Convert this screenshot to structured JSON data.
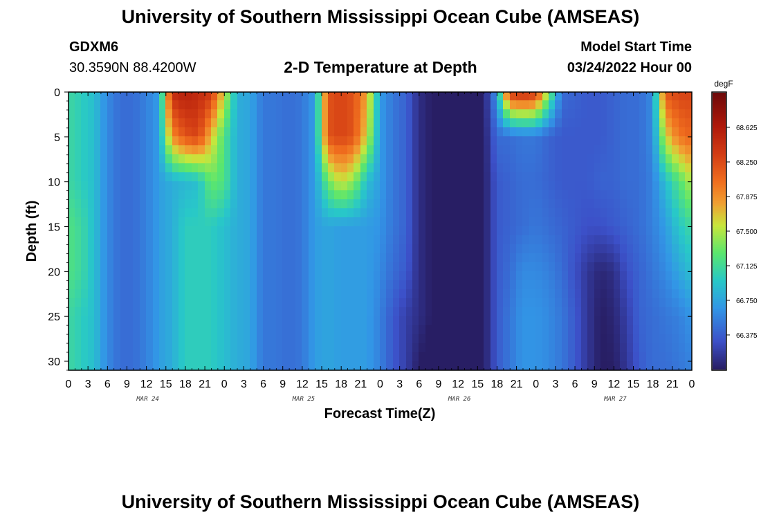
{
  "header": {
    "title": "University of Southern Mississippi Ocean Cube (AMSEAS)",
    "station_id": "GDXM6",
    "station_coords": "30.3590N  88.4200W",
    "plot_title": "2-D Temperature at Depth",
    "model_start_label": "Model Start Time",
    "model_start_value": "03/24/2022 Hour 00"
  },
  "footer": {
    "title": "University of Southern Mississippi Ocean Cube (AMSEAS)"
  },
  "chart_data": {
    "type": "heatmap",
    "title": "2-D Temperature at Depth",
    "xlabel": "Forecast Time(Z)",
    "ylabel": "Depth (ft)",
    "x_range_hours": [
      0,
      96
    ],
    "y_range_ft": [
      0,
      31
    ],
    "x_tick_labels": [
      "0",
      "3",
      "6",
      "9",
      "12",
      "15",
      "18",
      "21",
      "0",
      "3",
      "6",
      "9",
      "12",
      "15",
      "18",
      "21",
      "0",
      "3",
      "6",
      "9",
      "12",
      "15",
      "18",
      "21",
      "0",
      "3",
      "6",
      "9",
      "12",
      "15",
      "18",
      "21",
      "0"
    ],
    "y_ticks": [
      0,
      5,
      10,
      15,
      20,
      25,
      30
    ],
    "y_tick_labels": [
      "0",
      "5",
      "10",
      "15",
      "20",
      "25",
      "30"
    ],
    "day_labels": [
      {
        "label": "MAR 24",
        "hour": 12
      },
      {
        "label": "MAR 25",
        "hour": 36
      },
      {
        "label": "MAR 26",
        "hour": 60
      },
      {
        "label": "MAR 27",
        "hour": 84
      }
    ],
    "colorbar": {
      "units": "degF",
      "min": 66.0,
      "max": 69.0,
      "tick_values": [
        66.375,
        66.75,
        67.125,
        67.5,
        67.875,
        68.25,
        68.625
      ],
      "tick_labels": [
        "66.375",
        "66.750",
        "67.125",
        "67.500",
        "67.875",
        "68.250",
        "68.625"
      ]
    },
    "temperature_profile_description": "Temperature (degF) by forecast hour (columns, 0-96h) and depth (rows, 0-31ft). Approximate values sampled at each hour for representative depths.",
    "grid": {
      "hours": [
        0,
        2,
        4,
        6,
        8,
        10,
        12,
        14,
        16,
        18,
        20,
        22,
        24,
        26,
        28,
        30,
        32,
        34,
        36,
        38,
        40,
        42,
        44,
        46,
        48,
        50,
        52,
        54,
        56,
        58,
        60,
        62,
        64,
        66,
        68,
        70,
        72,
        74,
        76,
        78,
        80,
        82,
        84,
        86,
        88,
        90,
        92,
        94,
        96
      ],
      "depths": [
        0,
        5,
        10,
        15,
        20,
        25,
        31
      ],
      "values": [
        [
          67.1,
          67.0,
          66.9,
          66.6,
          66.45,
          66.45,
          66.55,
          66.7,
          68.5,
          68.6,
          68.5,
          68.4,
          67.6,
          66.8,
          66.75,
          66.5,
          66.5,
          66.45,
          66.5,
          66.7,
          68.2,
          68.3,
          68.2,
          67.8,
          66.7,
          66.5,
          66.4,
          66.1,
          66.0,
          65.9,
          65.8,
          65.8,
          66.0,
          66.7,
          68.4,
          68.5,
          68.4,
          67.4,
          66.45,
          66.4,
          66.35,
          66.35,
          66.4,
          66.45,
          66.45,
          66.6,
          68.2,
          68.3,
          68.3
        ],
        [
          67.1,
          67.0,
          66.9,
          66.6,
          66.45,
          66.45,
          66.55,
          66.7,
          67.9,
          68.2,
          68.3,
          67.7,
          67.2,
          66.8,
          66.75,
          66.5,
          66.5,
          66.45,
          66.5,
          66.7,
          68.2,
          68.3,
          68.2,
          67.6,
          66.7,
          66.5,
          66.4,
          66.1,
          66.0,
          65.9,
          65.8,
          65.8,
          66.0,
          66.45,
          66.45,
          66.5,
          66.5,
          66.4,
          66.35,
          66.35,
          66.35,
          66.35,
          66.4,
          66.45,
          66.45,
          66.6,
          67.6,
          68.0,
          68.1
        ],
        [
          67.1,
          67.0,
          66.9,
          66.6,
          66.45,
          66.45,
          66.55,
          66.7,
          66.8,
          66.85,
          66.9,
          67.3,
          67.2,
          66.8,
          66.75,
          66.5,
          66.5,
          66.45,
          66.5,
          66.7,
          67.3,
          67.6,
          67.4,
          66.9,
          66.7,
          66.5,
          66.4,
          66.1,
          66.0,
          65.9,
          65.8,
          65.8,
          66.0,
          66.35,
          66.4,
          66.45,
          66.45,
          66.4,
          66.35,
          66.35,
          66.35,
          66.4,
          66.4,
          66.45,
          66.45,
          66.55,
          66.9,
          67.2,
          67.5
        ],
        [
          67.2,
          67.1,
          66.9,
          66.6,
          66.45,
          66.45,
          66.55,
          66.7,
          66.8,
          67.0,
          67.0,
          67.0,
          66.9,
          66.8,
          66.75,
          66.5,
          66.5,
          66.45,
          66.5,
          66.7,
          66.75,
          66.7,
          66.7,
          66.7,
          66.65,
          66.5,
          66.4,
          66.1,
          66.0,
          65.9,
          65.8,
          65.8,
          66.0,
          66.35,
          66.4,
          66.45,
          66.5,
          66.45,
          66.4,
          66.35,
          66.3,
          66.3,
          66.35,
          66.4,
          66.45,
          66.55,
          66.7,
          66.95,
          67.1
        ],
        [
          67.2,
          67.1,
          66.9,
          66.6,
          66.45,
          66.45,
          66.55,
          66.7,
          66.8,
          67.0,
          67.0,
          67.0,
          66.9,
          66.8,
          66.75,
          66.5,
          66.5,
          66.45,
          66.5,
          66.7,
          66.75,
          66.7,
          66.7,
          66.7,
          66.6,
          66.45,
          66.35,
          66.1,
          66.0,
          65.9,
          65.8,
          65.8,
          66.0,
          66.35,
          66.45,
          66.6,
          66.6,
          66.55,
          66.45,
          66.3,
          66.15,
          66.05,
          66.1,
          66.3,
          66.4,
          66.5,
          66.6,
          66.75,
          66.9
        ],
        [
          67.1,
          67.0,
          66.9,
          66.6,
          66.45,
          66.45,
          66.55,
          66.7,
          66.8,
          67.0,
          67.0,
          67.0,
          66.9,
          66.8,
          66.75,
          66.5,
          66.5,
          66.45,
          66.5,
          66.7,
          66.75,
          66.7,
          66.7,
          66.7,
          66.55,
          66.35,
          66.2,
          66.1,
          66.0,
          65.9,
          65.8,
          65.8,
          66.0,
          66.35,
          66.5,
          66.65,
          66.65,
          66.6,
          66.5,
          66.35,
          66.15,
          66.0,
          66.05,
          66.2,
          66.4,
          66.45,
          66.5,
          66.55,
          66.65
        ],
        [
          67.1,
          67.0,
          66.9,
          66.6,
          66.45,
          66.45,
          66.55,
          66.7,
          66.8,
          67.0,
          67.0,
          67.0,
          66.9,
          66.8,
          66.75,
          66.5,
          66.5,
          66.45,
          66.5,
          66.7,
          66.75,
          66.7,
          66.7,
          66.7,
          66.55,
          66.35,
          66.2,
          66.0,
          65.9,
          65.85,
          65.8,
          65.8,
          66.0,
          66.35,
          66.5,
          66.65,
          66.65,
          66.6,
          66.5,
          66.35,
          66.15,
          66.0,
          66.0,
          66.15,
          66.35,
          66.45,
          66.45,
          66.5,
          66.55
        ]
      ]
    }
  }
}
